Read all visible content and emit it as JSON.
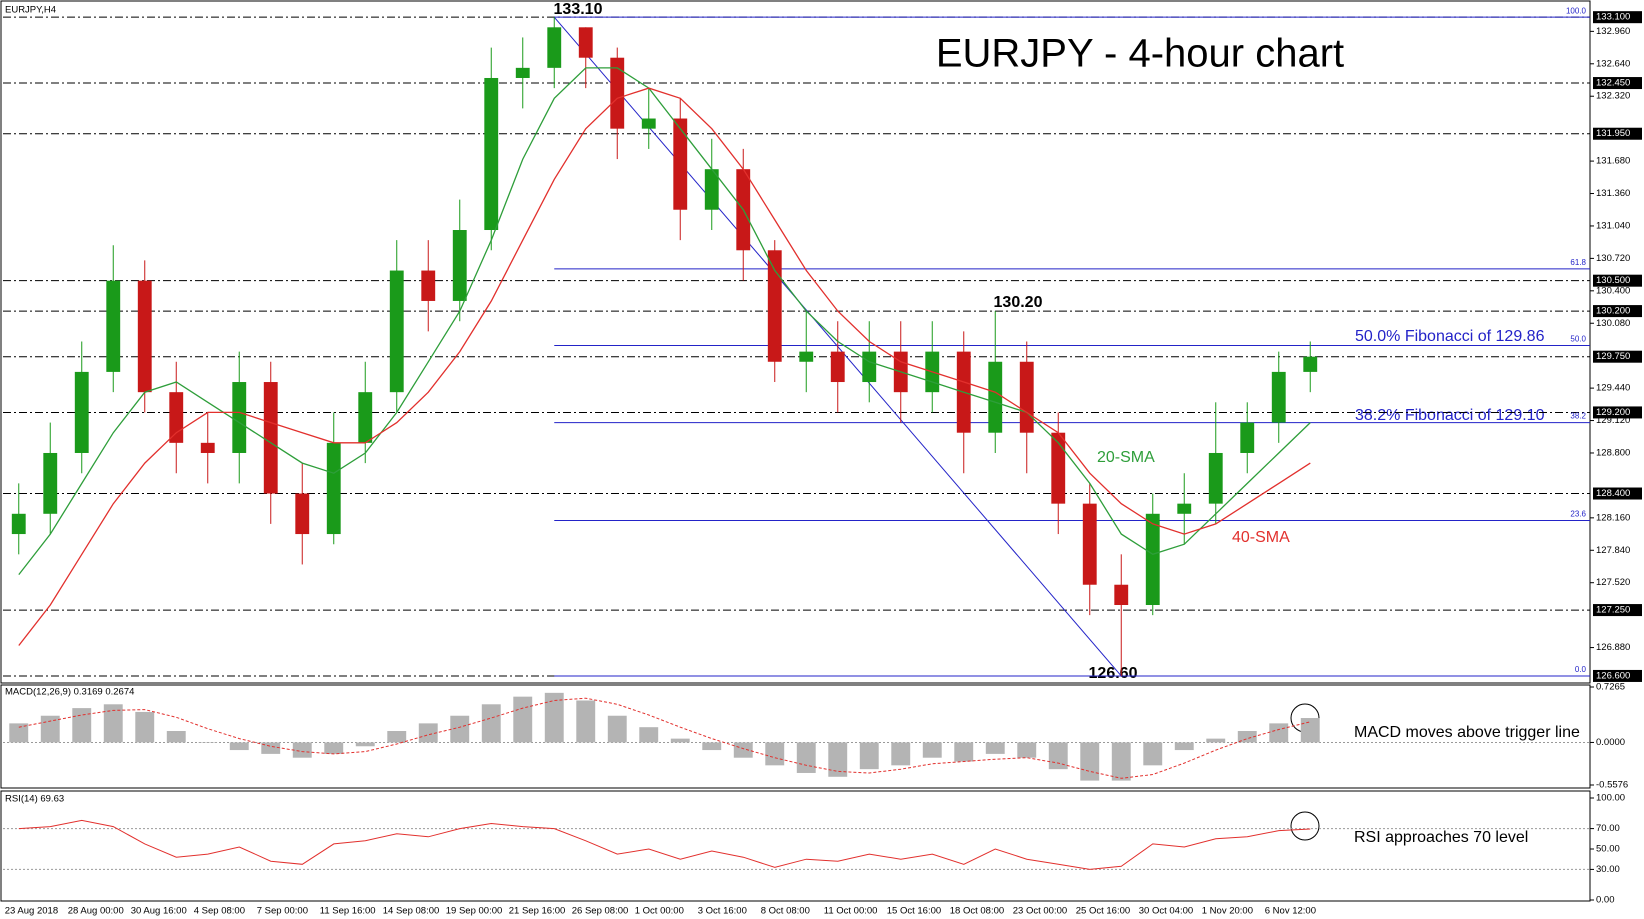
{
  "chart_data": [
    {
      "type": "candlestick",
      "title": "EURJPY - 4-hour chart",
      "label": "EURJPY,H4",
      "categories": [
        "23 Aug 2018",
        null,
        "28 Aug 00:00",
        null,
        "30 Aug 16:00",
        null,
        "4 Sep 08:00",
        null,
        "7 Sep 00:00",
        null,
        "11 Sep 16:00",
        null,
        "14 Sep 08:00",
        null,
        "19 Sep 00:00",
        null,
        "21 Sep 16:00",
        null,
        "26 Sep 08:00",
        null,
        "1 Oct 00:00",
        null,
        "3 Oct 16:00",
        null,
        "8 Oct 08:00",
        null,
        "11 Oct 00:00",
        null,
        "15 Oct 16:00",
        null,
        "18 Oct 08:00",
        null,
        "23 Oct 00:00",
        null,
        "25 Oct 16:00",
        null,
        "30 Oct 04:00",
        null,
        "1 Nov 20:00",
        null,
        "6 Nov 12:00",
        null
      ],
      "open": [
        128.0,
        128.2,
        128.8,
        129.6,
        130.5,
        129.4,
        128.9,
        128.8,
        129.5,
        128.4,
        128.0,
        128.9,
        129.4,
        130.6,
        130.3,
        131.0,
        132.5,
        132.6,
        133.0,
        132.7,
        132.0,
        132.1,
        131.2,
        131.6,
        130.8,
        129.7,
        129.8,
        129.5,
        129.8,
        129.4,
        129.8,
        129.0,
        129.7,
        129.0,
        128.3,
        127.5,
        127.3,
        128.2,
        128.3,
        128.8,
        129.1,
        129.6
      ],
      "high": [
        128.5,
        129.1,
        129.9,
        130.85,
        130.7,
        129.7,
        129.2,
        129.8,
        129.7,
        128.7,
        129.2,
        129.7,
        130.9,
        130.9,
        131.3,
        132.8,
        132.9,
        133.1,
        133.0,
        132.8,
        132.4,
        132.3,
        131.9,
        131.8,
        130.9,
        130.2,
        130.1,
        130.1,
        130.1,
        130.1,
        130.0,
        130.2,
        129.9,
        129.2,
        128.5,
        127.8,
        128.4,
        128.6,
        129.3,
        129.3,
        129.8,
        129.9
      ],
      "low": [
        127.8,
        128.0,
        128.6,
        129.4,
        129.2,
        128.6,
        128.5,
        128.5,
        128.1,
        127.7,
        127.9,
        128.7,
        129.2,
        130.0,
        130.1,
        130.8,
        132.2,
        132.4,
        132.4,
        131.7,
        131.8,
        130.9,
        131.0,
        130.5,
        129.5,
        129.4,
        129.2,
        129.3,
        129.1,
        129.2,
        128.6,
        128.8,
        128.6,
        128.0,
        127.2,
        126.6,
        127.2,
        127.9,
        128.1,
        128.6,
        128.9,
        129.4
      ],
      "close": [
        128.2,
        128.8,
        129.6,
        130.5,
        129.4,
        128.9,
        128.8,
        129.5,
        128.4,
        128.0,
        128.9,
        129.4,
        130.6,
        130.3,
        131.0,
        132.5,
        132.6,
        133.0,
        132.7,
        132.0,
        132.1,
        131.2,
        131.6,
        130.8,
        129.7,
        129.8,
        129.5,
        129.8,
        129.4,
        129.8,
        129.0,
        129.7,
        129.0,
        128.3,
        127.5,
        127.3,
        128.2,
        128.3,
        128.8,
        129.1,
        129.6,
        129.75
      ],
      "up_color": "#1a9a1a",
      "down_color": "#c81818",
      "series": [
        {
          "name": "20-SMA",
          "color": "#2e9e3a",
          "values": [
            127.6,
            128.0,
            128.5,
            129.0,
            129.4,
            129.5,
            129.3,
            129.1,
            128.9,
            128.7,
            128.6,
            128.8,
            129.2,
            129.7,
            130.2,
            130.9,
            131.7,
            132.3,
            132.6,
            132.6,
            132.4,
            132.0,
            131.6,
            131.2,
            130.6,
            130.2,
            129.9,
            129.7,
            129.6,
            129.5,
            129.4,
            129.3,
            129.2,
            128.9,
            128.5,
            128.0,
            127.8,
            127.9,
            128.2,
            128.5,
            128.8,
            129.1
          ]
        },
        {
          "name": "40-SMA",
          "color": "#e2302d",
          "values": [
            126.9,
            127.3,
            127.8,
            128.3,
            128.7,
            129.0,
            129.2,
            129.2,
            129.1,
            129.0,
            128.9,
            128.9,
            129.1,
            129.4,
            129.8,
            130.3,
            130.9,
            131.5,
            132.0,
            132.3,
            132.4,
            132.3,
            132.0,
            131.6,
            131.1,
            130.6,
            130.2,
            129.9,
            129.7,
            129.6,
            129.5,
            129.4,
            129.2,
            129.0,
            128.6,
            128.3,
            128.1,
            128.0,
            128.1,
            128.3,
            128.5,
            128.7
          ]
        }
      ],
      "ylim": [
        126.56,
        133.23
      ],
      "yticks": [
        {
          "value": 132.96,
          "label": "132.960"
        },
        {
          "value": 132.64,
          "label": "132.640"
        },
        {
          "value": 132.32,
          "label": "132.320"
        },
        {
          "value": 131.68,
          "label": "131.680"
        },
        {
          "value": 131.36,
          "label": "131.360"
        },
        {
          "value": 131.04,
          "label": "131.040"
        },
        {
          "value": 130.72,
          "label": "130.720"
        },
        {
          "value": 130.4,
          "label": "130.400"
        },
        {
          "value": 130.08,
          "label": "130.080"
        },
        {
          "value": 129.44,
          "label": "129.440"
        },
        {
          "value": 129.12,
          "label": "129.120"
        },
        {
          "value": 128.8,
          "label": "128.800"
        },
        {
          "value": 128.16,
          "label": "128.160"
        },
        {
          "value": 127.84,
          "label": "127.840"
        },
        {
          "value": 127.52,
          "label": "127.520"
        },
        {
          "value": 126.88,
          "label": "126.880"
        }
      ],
      "levels": [
        {
          "value": 133.1,
          "label": "133.100"
        },
        {
          "value": 132.45,
          "label": "132.450"
        },
        {
          "value": 131.95,
          "label": "131.950"
        },
        {
          "value": 130.5,
          "label": "130.500"
        },
        {
          "value": 130.2,
          "label": "130.200"
        },
        {
          "value": 129.75,
          "label": "129.750"
        },
        {
          "value": 129.2,
          "label": "129.200"
        },
        {
          "value": 128.4,
          "label": "128.400"
        },
        {
          "value": 127.25,
          "label": "127.250"
        },
        {
          "value": 126.6,
          "label": "126.600"
        }
      ],
      "fibonacci": [
        {
          "label": "100.0",
          "price": 133.1
        },
        {
          "label": "61.8",
          "price": 130.617
        },
        {
          "label": "50.0",
          "price": 129.86
        },
        {
          "label": "38.2",
          "price": 129.1
        },
        {
          "label": "23.6",
          "price": 128.134
        },
        {
          "label": "0.0",
          "price": 126.6
        }
      ],
      "fib_color": "#2323c8",
      "annotations": [
        "133.10",
        "130.20",
        "126.60",
        "50.0% Fibonacci of 129.86",
        "38.2% Fibonacci of 129.10",
        "20-SMA",
        "40-SMA"
      ]
    },
    {
      "type": "macd",
      "label": "MACD(12,26,9) 0.3169 0.2674",
      "histogram": {
        "color": "#b4b4b4",
        "values": [
          0.25,
          0.35,
          0.45,
          0.5,
          0.4,
          0.15,
          0.0,
          -0.1,
          -0.15,
          -0.2,
          -0.15,
          -0.05,
          0.15,
          0.25,
          0.35,
          0.5,
          0.6,
          0.65,
          0.55,
          0.35,
          0.2,
          0.05,
          -0.1,
          -0.2,
          -0.3,
          -0.4,
          -0.45,
          -0.35,
          -0.3,
          -0.2,
          -0.25,
          -0.15,
          -0.2,
          -0.35,
          -0.5,
          -0.5,
          -0.3,
          -0.1,
          0.05,
          0.15,
          0.25,
          0.32
        ]
      },
      "signal": {
        "color": "#e2302d",
        "values": [
          0.2,
          0.28,
          0.36,
          0.42,
          0.43,
          0.33,
          0.18,
          0.05,
          -0.05,
          -0.12,
          -0.15,
          -0.12,
          -0.02,
          0.1,
          0.2,
          0.32,
          0.45,
          0.55,
          0.58,
          0.5,
          0.36,
          0.2,
          0.05,
          -0.08,
          -0.2,
          -0.3,
          -0.38,
          -0.4,
          -0.35,
          -0.28,
          -0.25,
          -0.22,
          -0.2,
          -0.27,
          -0.38,
          -0.47,
          -0.42,
          -0.27,
          -0.1,
          0.05,
          0.17,
          0.27
        ]
      },
      "ylim": [
        -0.5576,
        0.7265
      ],
      "yticks": [
        0.7265,
        {
          "value": 0,
          "label": "0.0000"
        },
        -0.5576
      ],
      "zero_line": true,
      "annotation": "MACD moves above trigger line"
    },
    {
      "type": "rsi",
      "label": "RSI(14) 69.63",
      "color": "#e2302d",
      "values": [
        70,
        72,
        78,
        72,
        55,
        42,
        45,
        52,
        38,
        35,
        55,
        58,
        65,
        62,
        70,
        75,
        72,
        70,
        58,
        45,
        50,
        40,
        48,
        42,
        32,
        40,
        38,
        45,
        40,
        45,
        35,
        50,
        40,
        35,
        30,
        33,
        55,
        52,
        60,
        62,
        68,
        69.63
      ],
      "ylim": [
        0,
        100
      ],
      "yticks": [
        {
          "value": 100,
          "label": "100.00"
        },
        {
          "value": 70,
          "label": "70.00"
        },
        {
          "value": 50,
          "label": "50.00"
        },
        {
          "value": 30,
          "label": "30.00"
        },
        {
          "value": 0,
          "label": "0.00"
        }
      ],
      "levels": [
        70,
        30
      ],
      "annotation": "RSI approaches 70 level"
    }
  ]
}
